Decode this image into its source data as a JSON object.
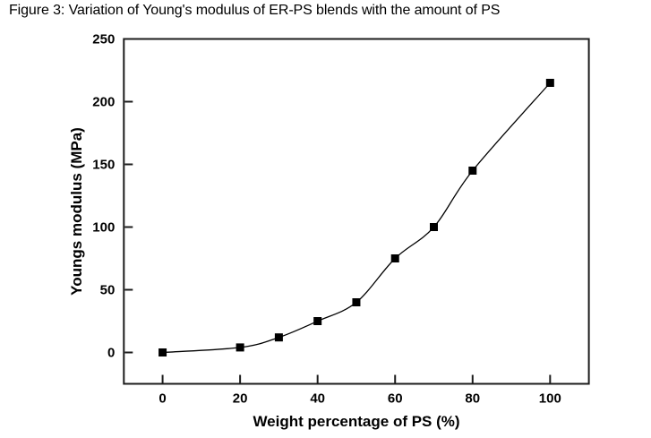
{
  "chart_data": {
    "type": "line",
    "title": "Figure 3: Variation of Young's modulus of ER-PS blends with the amount of PS",
    "xlabel": "Weight percentage of PS (%)",
    "ylabel": "Youngs modulus (MPa)",
    "x": [
      0,
      20,
      30,
      40,
      50,
      60,
      70,
      80,
      100
    ],
    "y": [
      0,
      4,
      12,
      25,
      40,
      75,
      100,
      145,
      215
    ],
    "xlim": [
      -10,
      110
    ],
    "ylim": [
      -25,
      250
    ],
    "xticks": [
      0,
      20,
      40,
      60,
      80,
      100
    ],
    "yticks": [
      0,
      50,
      100,
      150,
      200,
      250
    ],
    "grid": false,
    "legend": false,
    "marker": "filled-square",
    "line_style": "smooth",
    "colors": {
      "line": "#000000",
      "marker": "#000000",
      "frame": "#1c1c1c",
      "text": "#000000",
      "background": "#ffffff"
    }
  }
}
